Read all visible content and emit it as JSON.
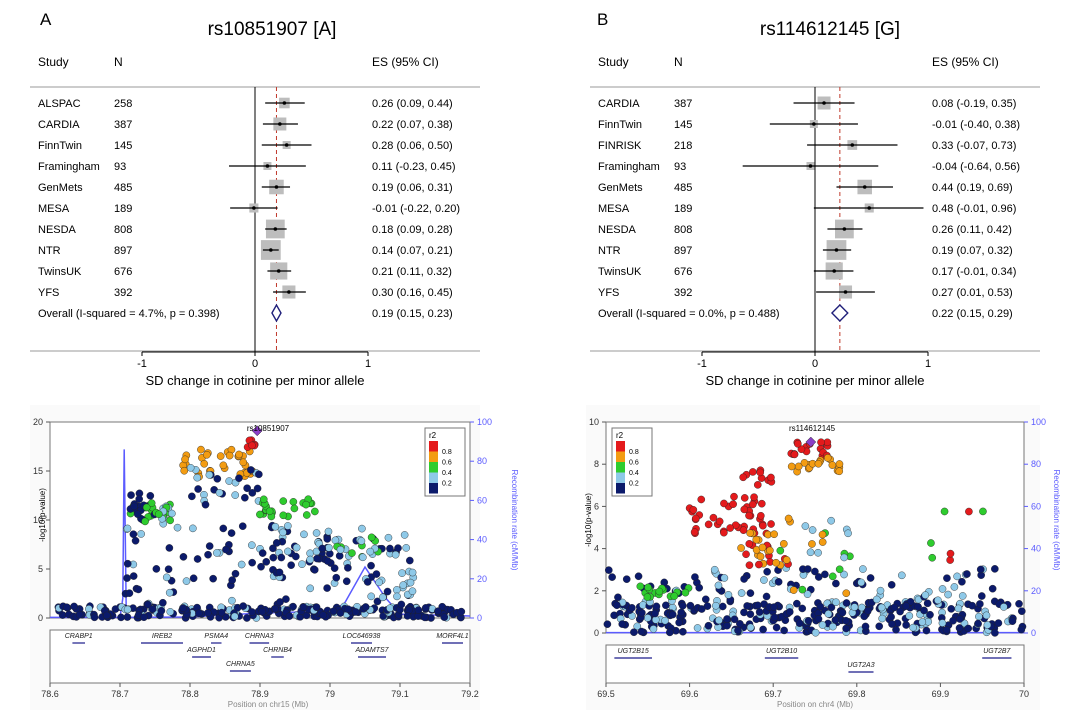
{
  "chart_data": [
    {
      "type": "forest",
      "panel_label": "A",
      "title": "rs10851907 [A]",
      "column_headers": {
        "study": "Study",
        "n": "N",
        "es": "ES (95% CI)"
      },
      "xlabel": "SD change in cotinine per minor allele",
      "xlim": [
        -2.05,
        1.05
      ],
      "xticks": [
        -1,
        0,
        1
      ],
      "reference_line": 0.19,
      "studies": [
        {
          "name": "ALSPAC",
          "n": "258",
          "es": 0.26,
          "lo": 0.09,
          "hi": 0.44,
          "label": "0.26 (0.09, 0.44)"
        },
        {
          "name": "CARDIA",
          "n": "387",
          "es": 0.22,
          "lo": 0.07,
          "hi": 0.38,
          "label": "0.22 (0.07, 0.38)"
        },
        {
          "name": "FinnTwin",
          "n": "145",
          "es": 0.28,
          "lo": 0.06,
          "hi": 0.5,
          "label": "0.28 (0.06, 0.50)"
        },
        {
          "name": "Framingham",
          "n": "93",
          "es": 0.11,
          "lo": -0.23,
          "hi": 0.45,
          "label": "0.11 (-0.23, 0.45)"
        },
        {
          "name": "GenMets",
          "n": "485",
          "es": 0.19,
          "lo": 0.06,
          "hi": 0.31,
          "label": "0.19 (0.06, 0.31)"
        },
        {
          "name": "MESA",
          "n": "189",
          "es": -0.01,
          "lo": -0.22,
          "hi": 0.2,
          "label": "-0.01 (-0.22, 0.20)"
        },
        {
          "name": "NESDA",
          "n": "808",
          "es": 0.18,
          "lo": 0.09,
          "hi": 0.28,
          "label": "0.18 (0.09, 0.28)"
        },
        {
          "name": "NTR",
          "n": "897",
          "es": 0.14,
          "lo": 0.07,
          "hi": 0.21,
          "label": "0.14 (0.07, 0.21)"
        },
        {
          "name": "TwinsUK",
          "n": "676",
          "es": 0.21,
          "lo": 0.11,
          "hi": 0.32,
          "label": "0.21 (0.11, 0.32)"
        },
        {
          "name": "YFS",
          "n": "392",
          "es": 0.3,
          "lo": 0.16,
          "hi": 0.45,
          "label": "0.30 (0.16, 0.45)"
        }
      ],
      "overall": {
        "name": "Overall  (I-squared = 4.7%, p = 0.398)",
        "es": 0.19,
        "lo": 0.15,
        "hi": 0.23,
        "label": "0.19 (0.15, 0.23)"
      },
      "colors": {
        "box": "#bdbdbd",
        "diamond": "#1f1f7a",
        "refline": "#c0392b"
      }
    },
    {
      "type": "forest",
      "panel_label": "B",
      "title": "rs114612145 [G]",
      "column_headers": {
        "study": "Study",
        "n": "N",
        "es": "ES (95% CI)"
      },
      "xlabel": "SD change in cotinine per minor allele",
      "xlim": [
        -1.02,
        1.02
      ],
      "xticks": [
        -1,
        0,
        1
      ],
      "reference_line": 0.22,
      "studies": [
        {
          "name": "CARDIA",
          "n": "387",
          "es": 0.08,
          "lo": -0.19,
          "hi": 0.35,
          "label": "0.08 (-0.19, 0.35)"
        },
        {
          "name": "FinnTwin",
          "n": "145",
          "es": -0.01,
          "lo": -0.4,
          "hi": 0.38,
          "label": "-0.01 (-0.40, 0.38)"
        },
        {
          "name": "FINRISK",
          "n": "218",
          "es": 0.33,
          "lo": -0.07,
          "hi": 0.73,
          "label": "0.33 (-0.07, 0.73)"
        },
        {
          "name": "Framingham",
          "n": "93",
          "es": -0.04,
          "lo": -0.64,
          "hi": 0.56,
          "label": "-0.04 (-0.64, 0.56)"
        },
        {
          "name": "GenMets",
          "n": "485",
          "es": 0.44,
          "lo": 0.19,
          "hi": 0.69,
          "label": "0.44 (0.19, 0.69)"
        },
        {
          "name": "MESA",
          "n": "189",
          "es": 0.48,
          "lo": -0.01,
          "hi": 0.96,
          "label": "0.48 (-0.01, 0.96)"
        },
        {
          "name": "NESDA",
          "n": "808",
          "es": 0.26,
          "lo": 0.11,
          "hi": 0.42,
          "label": "0.26 (0.11, 0.42)"
        },
        {
          "name": "NTR",
          "n": "897",
          "es": 0.19,
          "lo": 0.07,
          "hi": 0.32,
          "label": "0.19 (0.07, 0.32)"
        },
        {
          "name": "TwinsUK",
          "n": "676",
          "es": 0.17,
          "lo": -0.01,
          "hi": 0.34,
          "label": "0.17 (-0.01, 0.34)"
        },
        {
          "name": "YFS",
          "n": "392",
          "es": 0.27,
          "lo": 0.01,
          "hi": 0.53,
          "label": "0.27 (0.01, 0.53)"
        }
      ],
      "overall": {
        "name": "Overall  (I-squared = 0.0%, p = 0.488)",
        "es": 0.22,
        "lo": 0.15,
        "hi": 0.29,
        "label": "0.22 (0.15, 0.29)"
      },
      "colors": {
        "box": "#bdbdbd",
        "diamond": "#1f1f7a",
        "refline": "#c0392b"
      }
    },
    {
      "type": "scatter",
      "subtype": "regional-association",
      "snp_label": "rs10851907",
      "ylabel": "-log10(p-value)",
      "y2label": "Recombination rate (cM/Mb)",
      "xlabel": "Position on chr15 (Mb)",
      "xlim": [
        78.6,
        79.2
      ],
      "ylim": [
        0,
        20
      ],
      "y2lim": [
        0,
        100
      ],
      "xticks": [
        "78.6",
        "78.7",
        "78.8",
        "78.9",
        "79",
        "79.1",
        "79.2"
      ],
      "yticks": [
        0,
        5,
        10,
        15,
        20
      ],
      "y2ticks": [
        0,
        20,
        40,
        60,
        80,
        100
      ],
      "legend": {
        "title": "r2",
        "labels": [
          "0.8",
          "0.6",
          "0.4",
          "0.2"
        ],
        "colors": [
          "#e41a1c",
          "#f39c12",
          "#2ecc2e",
          "#8ec9e8",
          "#0b1a6b"
        ],
        "placement": "top-right"
      },
      "lead_snp": {
        "x": 78.896,
        "y": 19.1
      },
      "clusters": [
        {
          "x0": 78.612,
          "x1": 79.19,
          "y0": 0,
          "y1": 1.2,
          "n": 240,
          "colors": [
            4,
            4,
            4,
            3
          ]
        },
        {
          "x0": 78.705,
          "x1": 79.12,
          "y0": 0.5,
          "y1": 9.5,
          "n": 130,
          "colors": [
            4,
            4,
            3
          ]
        },
        {
          "x0": 78.71,
          "x1": 78.75,
          "y0": 10.0,
          "y1": 12.8,
          "n": 26,
          "colors": [
            4,
            2
          ]
        },
        {
          "x0": 78.735,
          "x1": 78.78,
          "y0": 9.6,
          "y1": 11.6,
          "n": 18,
          "colors": [
            3,
            2
          ]
        },
        {
          "x0": 78.79,
          "x1": 78.89,
          "y0": 14.4,
          "y1": 17.4,
          "n": 34,
          "colors": [
            1
          ]
        },
        {
          "x0": 78.8,
          "x1": 78.9,
          "y0": 11.5,
          "y1": 15.4,
          "n": 26,
          "colors": [
            4,
            3
          ]
        },
        {
          "x0": 78.88,
          "x1": 78.9,
          "y0": 17.4,
          "y1": 18.5,
          "n": 6,
          "colors": [
            0
          ]
        },
        {
          "x0": 78.89,
          "x1": 78.98,
          "y0": 10.2,
          "y1": 12.2,
          "n": 24,
          "colors": [
            2
          ]
        },
        {
          "x0": 78.9,
          "x1": 79.0,
          "y0": 4.6,
          "y1": 9.6,
          "n": 28,
          "colors": [
            3,
            4
          ]
        },
        {
          "x0": 79.0,
          "x1": 79.07,
          "y0": 5.8,
          "y1": 8.4,
          "n": 18,
          "colors": [
            2,
            3
          ]
        },
        {
          "x0": 79.07,
          "x1": 79.12,
          "y0": 2.0,
          "y1": 5.0,
          "n": 16,
          "colors": [
            3
          ]
        }
      ],
      "recombination": [
        [
          78.6,
          0.3
        ],
        [
          78.655,
          0.3
        ],
        [
          78.657,
          8
        ],
        [
          78.66,
          0.3
        ],
        [
          78.7,
          0.3
        ],
        [
          78.704,
          10
        ],
        [
          78.706,
          86
        ],
        [
          78.709,
          0.3
        ],
        [
          78.8,
          0.5
        ],
        [
          78.85,
          1.5
        ],
        [
          78.9,
          2.5
        ],
        [
          78.95,
          3
        ],
        [
          79.0,
          4
        ],
        [
          79.02,
          7
        ],
        [
          79.05,
          26
        ],
        [
          79.08,
          10
        ],
        [
          79.1,
          2
        ],
        [
          79.2,
          1
        ]
      ],
      "genes": [
        {
          "name": "CRABP1",
          "x0": 78.632,
          "x1": 78.65,
          "row": 0,
          "dir": "r"
        },
        {
          "name": "IREB2",
          "x0": 78.73,
          "x1": 78.79,
          "row": 0,
          "dir": "r"
        },
        {
          "name": "PSMA4",
          "x0": 78.83,
          "x1": 78.845,
          "row": 0,
          "dir": "r"
        },
        {
          "name": "CHRNA5",
          "x0": 78.857,
          "x1": 78.887,
          "row": 2,
          "dir": "r"
        },
        {
          "name": "CHRNA3",
          "x0": 78.885,
          "x1": 78.913,
          "row": 0,
          "dir": "l"
        },
        {
          "name": "CHRNB4",
          "x0": 78.916,
          "x1": 78.934,
          "row": 1,
          "dir": "l"
        },
        {
          "name": "AGPHD1",
          "x0": 78.803,
          "x1": 78.83,
          "row": 1,
          "dir": "r"
        },
        {
          "name": "LOC646938",
          "x0": 79.03,
          "x1": 79.06,
          "row": 0,
          "dir": "r"
        },
        {
          "name": "ADAMTS7",
          "x0": 79.04,
          "x1": 79.08,
          "row": 1,
          "dir": "l"
        },
        {
          "name": "MORF4L1",
          "x0": 79.16,
          "x1": 79.19,
          "row": 0,
          "dir": "r"
        }
      ]
    },
    {
      "type": "scatter",
      "subtype": "regional-association",
      "snp_label": "rs114612145",
      "ylabel": "-log10(p-value)",
      "y2label": "Recombination rate (cM/Mb)",
      "xlabel": "Position on chr4 (Mb)",
      "xlim": [
        69.5,
        70.0
      ],
      "ylim": [
        0,
        10
      ],
      "y2lim": [
        0,
        100
      ],
      "xticks": [
        "69.5",
        "69.6",
        "69.7",
        "69.8",
        "69.9",
        "70"
      ],
      "yticks": [
        0,
        2,
        4,
        6,
        8,
        10
      ],
      "y2ticks": [
        0,
        20,
        40,
        60,
        80,
        100
      ],
      "legend": {
        "title": "r2",
        "labels": [
          "0.8",
          "0.6",
          "0.4",
          "0.2"
        ],
        "colors": [
          "#e41a1c",
          "#f39c12",
          "#2ecc2e",
          "#8ec9e8",
          "#0b1a6b"
        ],
        "placement": "top-left"
      },
      "lead_snp": {
        "x": 69.745,
        "y": 9.05
      },
      "clusters": [
        {
          "x0": 69.5,
          "x1": 70.0,
          "y0": 0,
          "y1": 1.5,
          "n": 300,
          "colors": [
            4,
            4,
            4,
            3
          ]
        },
        {
          "x0": 69.5,
          "x1": 69.98,
          "y0": 1.2,
          "y1": 3.1,
          "n": 110,
          "colors": [
            4,
            4,
            3
          ]
        },
        {
          "x0": 69.54,
          "x1": 69.6,
          "y0": 1.7,
          "y1": 2.3,
          "n": 16,
          "colors": [
            2
          ]
        },
        {
          "x0": 69.6,
          "x1": 69.7,
          "y0": 4.6,
          "y1": 6.6,
          "n": 40,
          "colors": [
            0
          ]
        },
        {
          "x0": 69.66,
          "x1": 69.7,
          "y0": 7.0,
          "y1": 7.8,
          "n": 10,
          "colors": [
            0
          ]
        },
        {
          "x0": 69.66,
          "x1": 69.72,
          "y0": 3.2,
          "y1": 5.0,
          "n": 32,
          "colors": [
            0,
            1
          ]
        },
        {
          "x0": 69.72,
          "x1": 69.77,
          "y0": 8.4,
          "y1": 9.1,
          "n": 18,
          "colors": [
            0
          ]
        },
        {
          "x0": 69.72,
          "x1": 69.78,
          "y0": 7.6,
          "y1": 8.3,
          "n": 18,
          "colors": [
            1
          ]
        },
        {
          "x0": 69.7,
          "x1": 69.8,
          "y0": 1.8,
          "y1": 5.5,
          "n": 24,
          "colors": [
            1,
            3,
            2
          ]
        },
        {
          "x0": 69.86,
          "x1": 69.96,
          "y0": 3.2,
          "y1": 5.8,
          "n": 7,
          "colors": [
            2,
            0
          ]
        }
      ],
      "recombination": [
        [
          69.5,
          0.2
        ],
        [
          70.0,
          0.2
        ]
      ],
      "genes": [
        {
          "name": "UGT2B15",
          "x0": 69.51,
          "x1": 69.555,
          "row": 0,
          "dir": "l"
        },
        {
          "name": "UGT2B10",
          "x0": 69.69,
          "x1": 69.73,
          "row": 0,
          "dir": "r"
        },
        {
          "name": "UGT2A3",
          "x0": 69.79,
          "x1": 69.82,
          "row": 1,
          "dir": "l"
        },
        {
          "name": "UGT2B7",
          "x0": 69.95,
          "x1": 69.985,
          "row": 0,
          "dir": "r"
        }
      ]
    }
  ]
}
